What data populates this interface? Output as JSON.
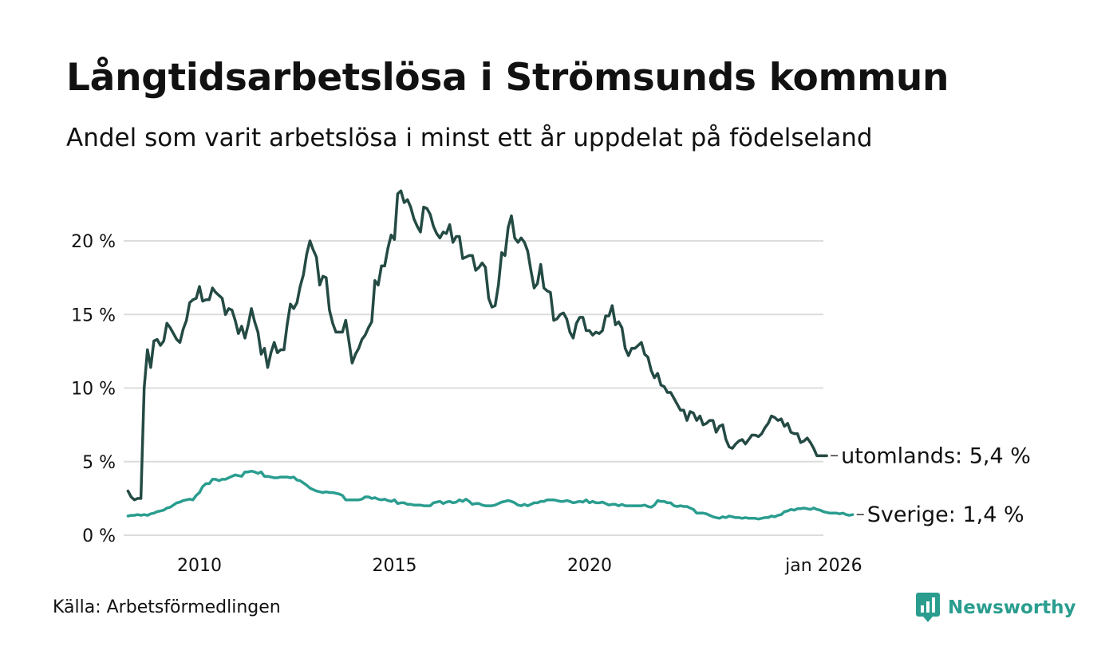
{
  "header": {
    "title": "Långtidsarbetslösa i Strömsunds kommun",
    "subtitle": "Andel som varit arbetslösa i minst ett år uppdelat på födelseland"
  },
  "footer": {
    "source": "Källa: Arbetsförmedlingen",
    "brand": "Newsworthy",
    "brand_icon": "newsworthy-logo-icon"
  },
  "colors": {
    "utomlands": "#244a44",
    "sverige": "#2a9d8f",
    "grid": "#dcdcdc",
    "brand": "#2a9d8f"
  },
  "chart_data": {
    "type": "line",
    "title": "Långtidsarbetslösa i Strömsunds kommun",
    "subtitle": "Andel som varit arbetslösa i minst ett år uppdelat på födelseland",
    "xlabel": "",
    "ylabel": "",
    "x_start": 2008.1667,
    "x_end": 2026.0,
    "x_step": 0.0833,
    "xlim": [
      2008.1667,
      2026.0
    ],
    "ylim": [
      0,
      24
    ],
    "grid": true,
    "y_ticks": [
      0,
      5,
      10,
      15,
      20
    ],
    "y_tick_labels": [
      "0 %",
      "5 %",
      "10 %",
      "15 %",
      "20 %"
    ],
    "x_ticks": [
      2010,
      2015,
      2020,
      2026
    ],
    "x_tick_labels": [
      "2010",
      "2015",
      "2020",
      "jan 2026"
    ],
    "series": [
      {
        "name": "utomlands",
        "end_label": "utomlands: 5,4 %",
        "values": [
          3.0,
          2.6,
          2.4,
          2.5,
          2.5,
          10.0,
          12.6,
          11.4,
          13.2,
          13.3,
          12.9,
          13.2,
          14.4,
          14.1,
          13.7,
          13.3,
          13.1,
          14.0,
          14.6,
          15.8,
          16.0,
          16.1,
          16.9,
          15.9,
          16.0,
          16.0,
          16.8,
          16.5,
          16.3,
          16.1,
          15.0,
          15.4,
          15.3,
          14.6,
          13.7,
          14.2,
          13.4,
          14.3,
          15.4,
          14.5,
          13.8,
          12.3,
          12.7,
          11.4,
          12.4,
          13.1,
          12.4,
          12.6,
          12.6,
          14.3,
          15.7,
          15.4,
          15.8,
          16.9,
          17.7,
          19.1,
          20.0,
          19.4,
          18.9,
          17.0,
          17.6,
          17.5,
          15.3,
          14.4,
          13.8,
          13.8,
          13.8,
          14.6,
          13.2,
          11.7,
          12.3,
          12.7,
          13.3,
          13.6,
          14.1,
          14.5,
          17.3,
          17.0,
          18.3,
          18.3,
          19.5,
          20.4,
          20.1,
          23.2,
          23.4,
          22.6,
          22.8,
          22.3,
          21.5,
          21.0,
          20.6,
          22.3,
          22.2,
          21.8,
          21.0,
          20.5,
          20.2,
          20.6,
          20.5,
          21.1,
          19.9,
          20.3,
          20.3,
          18.8,
          18.9,
          19.0,
          19.0,
          18.0,
          18.2,
          18.5,
          18.2,
          16.1,
          15.5,
          15.6,
          17.0,
          19.2,
          19.0,
          20.9,
          21.7,
          20.2,
          19.9,
          20.2,
          19.9,
          19.3,
          18.0,
          16.8,
          17.1,
          18.4,
          16.8,
          16.6,
          16.5,
          14.6,
          14.7,
          15.0,
          15.1,
          14.7,
          13.8,
          13.4,
          14.4,
          14.8,
          14.8,
          13.9,
          13.9,
          13.6,
          13.8,
          13.7,
          13.9,
          14.9,
          14.9,
          15.6,
          14.3,
          14.5,
          14.1,
          12.7,
          12.2,
          12.7,
          12.7,
          12.9,
          13.1,
          12.3,
          12.1,
          11.2,
          10.7,
          11.0,
          10.2,
          10.1,
          9.7,
          9.7,
          9.3,
          8.9,
          8.5,
          8.5,
          7.8,
          8.4,
          8.3,
          7.8,
          8.1,
          7.5,
          7.6,
          7.8,
          7.8,
          7.0,
          7.4,
          7.5,
          6.5,
          6.0,
          5.9,
          6.2,
          6.4,
          6.5,
          6.2,
          6.5,
          6.8,
          6.8,
          6.7,
          6.9,
          7.3,
          7.6,
          8.1,
          8.0,
          7.8,
          7.9,
          7.4,
          7.6,
          7.0,
          6.9,
          6.9,
          6.3,
          6.4,
          6.6,
          6.3,
          5.9,
          5.4,
          5.4,
          5.4,
          5.4
        ]
      },
      {
        "name": "Sverige",
        "end_label": "Sverige: 1,4 %",
        "values": [
          1.3,
          1.35,
          1.35,
          1.4,
          1.35,
          1.4,
          1.35,
          1.45,
          1.5,
          1.6,
          1.65,
          1.7,
          1.85,
          1.9,
          2.05,
          2.2,
          2.25,
          2.35,
          2.4,
          2.45,
          2.4,
          2.7,
          2.9,
          3.3,
          3.5,
          3.5,
          3.8,
          3.8,
          3.7,
          3.8,
          3.8,
          3.9,
          4.0,
          4.1,
          4.05,
          4.0,
          4.3,
          4.3,
          4.35,
          4.3,
          4.2,
          4.3,
          4.0,
          4.0,
          3.95,
          3.9,
          3.9,
          3.95,
          3.95,
          3.95,
          3.9,
          3.95,
          3.75,
          3.7,
          3.55,
          3.4,
          3.2,
          3.1,
          3.0,
          2.95,
          2.9,
          2.95,
          2.9,
          2.9,
          2.85,
          2.8,
          2.7,
          2.4,
          2.4,
          2.4,
          2.4,
          2.4,
          2.45,
          2.6,
          2.6,
          2.5,
          2.55,
          2.45,
          2.4,
          2.45,
          2.35,
          2.3,
          2.4,
          2.15,
          2.2,
          2.2,
          2.1,
          2.1,
          2.05,
          2.05,
          2.05,
          2.0,
          2.0,
          2.0,
          2.2,
          2.25,
          2.3,
          2.15,
          2.25,
          2.3,
          2.2,
          2.25,
          2.4,
          2.3,
          2.45,
          2.3,
          2.1,
          2.15,
          2.15,
          2.05,
          2.0,
          2.0,
          2.0,
          2.05,
          2.15,
          2.25,
          2.3,
          2.35,
          2.3,
          2.2,
          2.05,
          2.0,
          2.1,
          2.0,
          2.1,
          2.2,
          2.2,
          2.3,
          2.3,
          2.4,
          2.4,
          2.4,
          2.35,
          2.3,
          2.3,
          2.35,
          2.3,
          2.2,
          2.25,
          2.3,
          2.25,
          2.4,
          2.2,
          2.3,
          2.2,
          2.2,
          2.25,
          2.15,
          2.05,
          2.1,
          2.1,
          2.0,
          2.1,
          2.0,
          2.0,
          2.0,
          2.0,
          2.0,
          2.0,
          2.05,
          1.95,
          1.9,
          2.05,
          2.35,
          2.3,
          2.3,
          2.2,
          2.2,
          2.0,
          1.95,
          2.0,
          1.95,
          1.95,
          1.85,
          1.75,
          1.5,
          1.5,
          1.5,
          1.45,
          1.35,
          1.25,
          1.2,
          1.15,
          1.25,
          1.2,
          1.3,
          1.25,
          1.2,
          1.2,
          1.15,
          1.2,
          1.15,
          1.15,
          1.15,
          1.1,
          1.15,
          1.2,
          1.2,
          1.3,
          1.25,
          1.35,
          1.4,
          1.6,
          1.65,
          1.75,
          1.7,
          1.8,
          1.8,
          1.85,
          1.8,
          1.75,
          1.85,
          1.75,
          1.7,
          1.6,
          1.55,
          1.5,
          1.5,
          1.5,
          1.45,
          1.5,
          1.4,
          1.35,
          1.4
        ]
      }
    ]
  }
}
